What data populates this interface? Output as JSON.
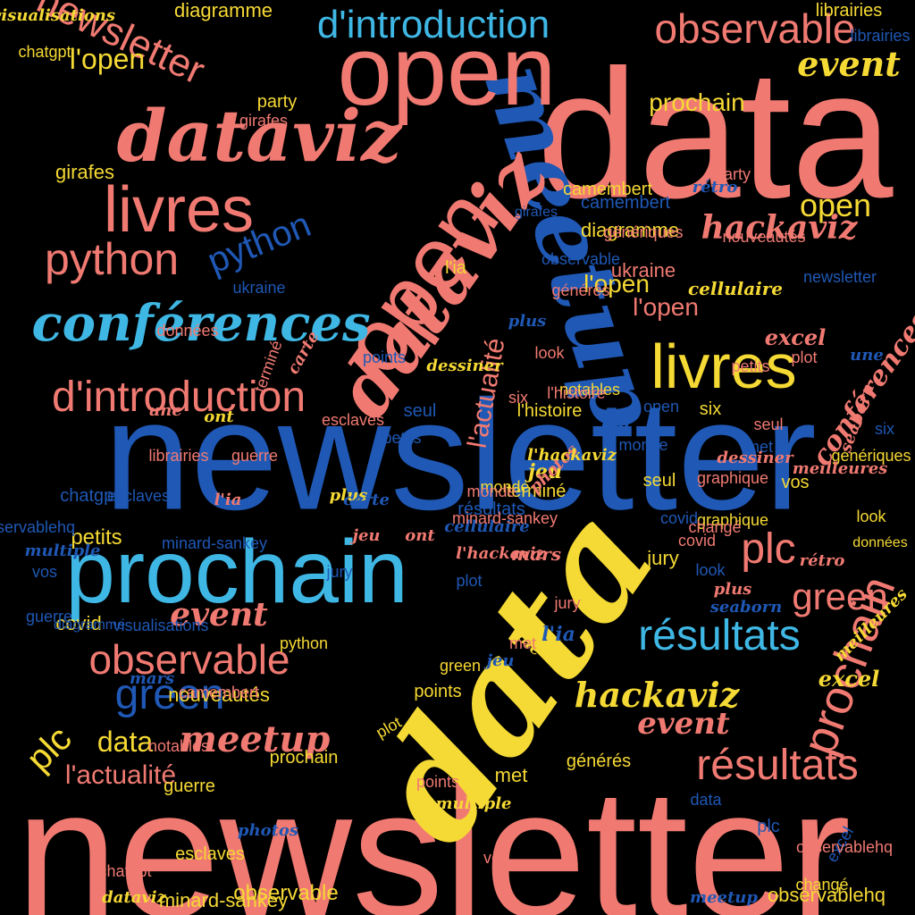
{
  "colors": {
    "background": "#000000",
    "coral": "#F07A72",
    "yellow": "#F5D934",
    "cyan": "#3FB7E4",
    "blue": "#1F58B5"
  },
  "words": [
    {
      "text": "newsletter",
      "color": "coral"
    },
    {
      "text": "newsletter",
      "color": "blue"
    },
    {
      "text": "data",
      "color": "coral"
    },
    {
      "text": "data",
      "color": "yellow"
    },
    {
      "text": "meetup",
      "color": "blue"
    },
    {
      "text": "prochain",
      "color": "cyan"
    },
    {
      "text": "open",
      "color": "coral"
    },
    {
      "text": "open",
      "color": "coral"
    },
    {
      "text": "dataviz",
      "color": "coral"
    },
    {
      "text": "dataviz",
      "color": "coral"
    },
    {
      "text": "conférences",
      "color": "cyan"
    },
    {
      "text": "d'introduction",
      "color": "coral"
    },
    {
      "text": "d'introduction",
      "color": "cyan"
    },
    {
      "text": "observable",
      "color": "coral"
    },
    {
      "text": "observable",
      "color": "coral"
    },
    {
      "text": "livres",
      "color": "coral"
    },
    {
      "text": "livres",
      "color": "yellow"
    },
    {
      "text": "python",
      "color": "coral"
    },
    {
      "text": "python",
      "color": "blue"
    },
    {
      "text": "green",
      "color": "blue"
    },
    {
      "text": "green",
      "color": "coral"
    },
    {
      "text": "résultats",
      "color": "cyan"
    },
    {
      "text": "résultats",
      "color": "coral"
    },
    {
      "text": "hackaviz",
      "color": "coral"
    },
    {
      "text": "hackaviz",
      "color": "yellow"
    },
    {
      "text": "event",
      "color": "yellow"
    },
    {
      "text": "event",
      "color": "coral"
    },
    {
      "text": "event",
      "color": "coral"
    },
    {
      "text": "prochain",
      "color": "coral"
    },
    {
      "text": "plc",
      "color": "coral"
    },
    {
      "text": "plc",
      "color": "yellow"
    },
    {
      "text": "meetup",
      "color": "coral"
    },
    {
      "text": "data",
      "color": "yellow"
    },
    {
      "text": "l'actualité",
      "color": "coral"
    },
    {
      "text": "l'actualité",
      "color": "coral"
    },
    {
      "text": "newsletter",
      "color": "coral"
    },
    {
      "text": "l'open",
      "color": "yellow"
    },
    {
      "text": "l'open",
      "color": "coral"
    },
    {
      "text": "l'open",
      "color": "yellow"
    },
    {
      "text": "open",
      "color": "yellow"
    },
    {
      "text": "conférences",
      "color": "coral"
    },
    {
      "text": "excel",
      "color": "coral"
    },
    {
      "text": "excel",
      "color": "yellow"
    },
    {
      "text": "prochain",
      "color": "yellow"
    },
    {
      "text": "visualisations",
      "color": "yellow"
    },
    {
      "text": "chatgpt",
      "color": "yellow"
    },
    {
      "text": "diagramme",
      "color": "yellow"
    },
    {
      "text": "diagramme",
      "color": "yellow"
    },
    {
      "text": "librairies",
      "color": "yellow"
    },
    {
      "text": "girafes",
      "color": "yellow"
    },
    {
      "text": "camembert",
      "color": "yellow"
    },
    {
      "text": "minard-sankey",
      "color": "yellow"
    },
    {
      "text": "observablehq",
      "color": "yellow"
    },
    {
      "text": "observable",
      "color": "yellow"
    },
    {
      "text": "nouveautés",
      "color": "yellow"
    },
    {
      "text": "points",
      "color": "yellow"
    },
    {
      "text": "ukraine",
      "color": "coral"
    },
    {
      "text": "guerre",
      "color": "yellow"
    },
    {
      "text": "monde",
      "color": "yellow"
    },
    {
      "text": "esclaves",
      "color": "yellow"
    },
    {
      "text": "covid",
      "color": "yellow"
    },
    {
      "text": "six",
      "color": "yellow"
    },
    {
      "text": "jury",
      "color": "yellow"
    },
    {
      "text": "petits",
      "color": "yellow"
    },
    {
      "text": "seul",
      "color": "yellow"
    },
    {
      "text": "vos",
      "color": "yellow"
    },
    {
      "text": "met",
      "color": "yellow"
    },
    {
      "text": "look",
      "color": "yellow"
    },
    {
      "text": "plot",
      "color": "yellow"
    },
    {
      "text": "l'histoire",
      "color": "yellow"
    },
    {
      "text": "notables",
      "color": "yellow"
    },
    {
      "text": "générés",
      "color": "yellow"
    },
    {
      "text": "données",
      "color": "yellow"
    },
    {
      "text": "terminé",
      "color": "yellow"
    },
    {
      "text": "party",
      "color": "yellow"
    },
    {
      "text": "changé",
      "color": "yellow"
    },
    {
      "text": "graphique",
      "color": "yellow"
    },
    {
      "text": "génériques",
      "color": "yellow"
    },
    {
      "text": "l'ia",
      "color": "yellow"
    },
    {
      "text": "jeu",
      "color": "yellow"
    },
    {
      "text": "ont",
      "color": "yellow"
    },
    {
      "text": "une",
      "color": "yellow"
    },
    {
      "text": "plus",
      "color": "yellow"
    },
    {
      "text": "mars",
      "color": "coral"
    },
    {
      "text": "rétro",
      "color": "blue"
    },
    {
      "text": "carte",
      "color": "coral"
    },
    {
      "text": "photos",
      "color": "coral"
    },
    {
      "text": "seaborn",
      "color": "coral"
    },
    {
      "text": "dessiner",
      "color": "coral"
    },
    {
      "text": "multiple",
      "color": "yellow"
    },
    {
      "text": "meilleures",
      "color": "yellow"
    },
    {
      "text": "cellulaire",
      "color": "yellow"
    },
    {
      "text": "l'hackaviz",
      "color": "yellow"
    },
    {
      "text": "ukraine",
      "color": "blue"
    },
    {
      "text": "green",
      "color": "yellow"
    },
    {
      "text": "python",
      "color": "yellow"
    },
    {
      "text": "prochain",
      "color": "yellow"
    },
    {
      "text": "observable",
      "color": "blue"
    },
    {
      "text": "newsletter",
      "color": "blue"
    },
    {
      "text": "observablehq",
      "color": "blue"
    },
    {
      "text": "librairies",
      "color": "blue"
    },
    {
      "text": "chatgpt",
      "color": "blue"
    },
    {
      "text": "diagramme",
      "color": "blue"
    },
    {
      "text": "girafes",
      "color": "blue"
    },
    {
      "text": "camembert",
      "color": "blue"
    },
    {
      "text": "visualisations",
      "color": "blue"
    },
    {
      "text": "minard-sankey",
      "color": "blue"
    },
    {
      "text": "résultats",
      "color": "blue"
    },
    {
      "text": "monde",
      "color": "blue"
    },
    {
      "text": "points",
      "color": "blue"
    },
    {
      "text": "esclaves",
      "color": "blue"
    },
    {
      "text": "guerre",
      "color": "blue"
    },
    {
      "text": "covid",
      "color": "blue"
    },
    {
      "text": "seul",
      "color": "blue"
    },
    {
      "text": "petits",
      "color": "blue"
    },
    {
      "text": "vos",
      "color": "blue"
    },
    {
      "text": "jury",
      "color": "blue"
    },
    {
      "text": "met",
      "color": "blue"
    },
    {
      "text": "six",
      "color": "blue"
    },
    {
      "text": "look",
      "color": "blue"
    },
    {
      "text": "plot",
      "color": "blue"
    },
    {
      "text": "data",
      "color": "blue"
    },
    {
      "text": "open",
      "color": "blue"
    },
    {
      "text": "plc",
      "color": "blue"
    },
    {
      "text": "excel",
      "color": "blue"
    },
    {
      "text": "l'ia",
      "color": "blue"
    },
    {
      "text": "une",
      "color": "blue"
    },
    {
      "text": "jeu",
      "color": "blue"
    },
    {
      "text": "ont",
      "color": "blue"
    },
    {
      "text": "plus",
      "color": "blue"
    },
    {
      "text": "carte",
      "color": "blue"
    },
    {
      "text": "photos",
      "color": "blue"
    },
    {
      "text": "seaborn",
      "color": "blue"
    },
    {
      "text": "multiple",
      "color": "blue"
    },
    {
      "text": "cellulaire",
      "color": "blue"
    },
    {
      "text": "mars",
      "color": "blue"
    },
    {
      "text": "meetup",
      "color": "blue"
    },
    {
      "text": "terminé",
      "color": "coral"
    },
    {
      "text": "l'histoire",
      "color": "coral"
    },
    {
      "text": "générés",
      "color": "coral"
    },
    {
      "text": "notables",
      "color": "coral"
    },
    {
      "text": "données",
      "color": "coral"
    },
    {
      "text": "changé",
      "color": "coral"
    },
    {
      "text": "party",
      "color": "coral"
    },
    {
      "text": "graphique",
      "color": "coral"
    },
    {
      "text": "génériques",
      "color": "coral"
    },
    {
      "text": "nouveautés",
      "color": "coral"
    },
    {
      "text": "camembert",
      "color": "coral"
    },
    {
      "text": "minard-sankey",
      "color": "coral"
    },
    {
      "text": "chatgpt",
      "color": "coral"
    },
    {
      "text": "girafes",
      "color": "coral"
    },
    {
      "text": "librairies",
      "color": "coral"
    },
    {
      "text": "observablehq",
      "color": "coral"
    },
    {
      "text": "monde",
      "color": "coral"
    },
    {
      "text": "points",
      "color": "coral"
    },
    {
      "text": "esclaves",
      "color": "coral"
    },
    {
      "text": "guerre",
      "color": "coral"
    },
    {
      "text": "covid",
      "color": "coral"
    },
    {
      "text": "seul",
      "color": "coral"
    },
    {
      "text": "petits",
      "color": "coral"
    },
    {
      "text": "vos",
      "color": "coral"
    },
    {
      "text": "jury",
      "color": "coral"
    },
    {
      "text": "met",
      "color": "coral"
    },
    {
      "text": "six",
      "color": "coral"
    },
    {
      "text": "look",
      "color": "coral"
    },
    {
      "text": "plot",
      "color": "coral"
    },
    {
      "text": "l'ia",
      "color": "coral"
    },
    {
      "text": "une",
      "color": "coral"
    },
    {
      "text": "jeu",
      "color": "coral"
    },
    {
      "text": "ont",
      "color": "coral"
    },
    {
      "text": "plus",
      "color": "coral"
    },
    {
      "text": "dessiner",
      "color": "yellow"
    },
    {
      "text": "rétro",
      "color": "coral"
    },
    {
      "text": "l'hackaviz",
      "color": "coral"
    },
    {
      "text": "meilleures",
      "color": "coral"
    },
    {
      "text": "dataviz",
      "color": "yellow"
    }
  ]
}
